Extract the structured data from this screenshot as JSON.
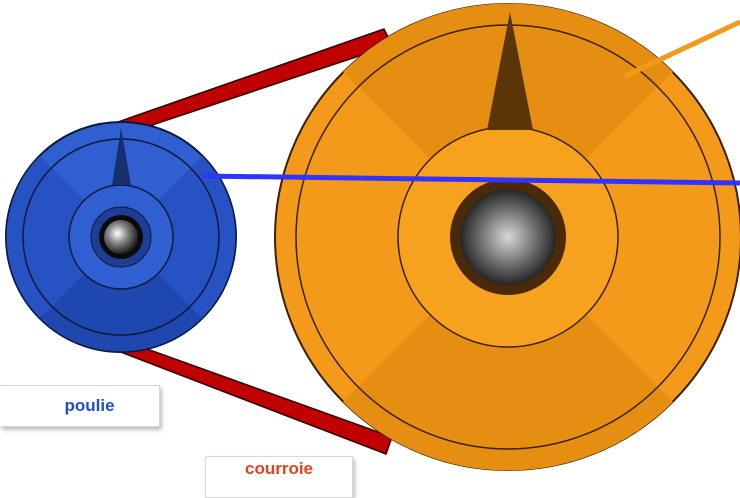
{
  "labels": {
    "pulley": "poulie",
    "belt": "courroie"
  },
  "colors": {
    "belt": "#c00000",
    "small_pulley": "#2f5fd0",
    "large_pulley": "#f39a1a",
    "pointer_line_small": "#3333ff",
    "pointer_line_large": "#f39a1a",
    "label_pulley_text": "#1f4fd0",
    "label_belt_text": "#e8401a"
  },
  "icons": {
    "small_pulley": "small-pulley-icon",
    "large_pulley": "large-pulley-icon"
  }
}
